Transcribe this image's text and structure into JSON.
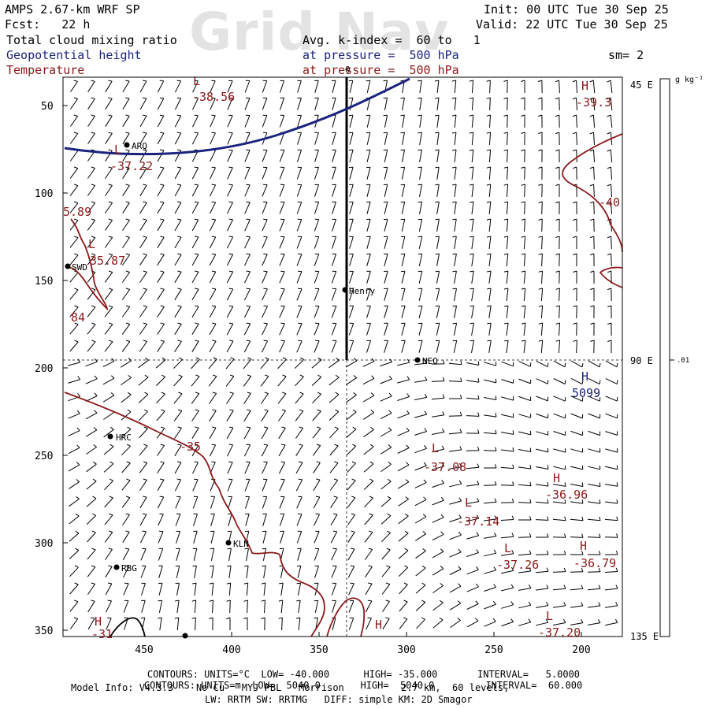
{
  "watermark": "Grid Nav",
  "header": {
    "model": "AMPS 2.67-km WRF SP",
    "fcst": "Fcst:   22 h",
    "init": "Init: 00 UTC Tue 30 Sep 25",
    "valid": "Valid: 22 UTC Tue 30 Sep 25",
    "field1": "Total cloud mixing ratio",
    "field2": "Geopotential height",
    "field3": "Temperature",
    "avg": "Avg. k-index =  60 to   1",
    "pressure1": "at pressure =  500 hPa",
    "pressure2": "at pressure =  500 hPa",
    "sm": "sm= 2"
  },
  "axes": {
    "x_ticks": [
      "450",
      "400",
      "350",
      "300",
      "250",
      "200"
    ],
    "y_ticks": [
      "50",
      "100",
      "150",
      "200",
      "250",
      "300",
      "350"
    ],
    "right_labels": [
      "45 E",
      "90 E",
      "135 E"
    ],
    "unit_label": "g kg⁻¹",
    "colorbar_value": ".01"
  },
  "stations": [
    {
      "name": "ARQ"
    },
    {
      "name": "SWD"
    },
    {
      "name": "Henry"
    },
    {
      "name": "NEO"
    },
    {
      "name": "HRC"
    },
    {
      "name": "KLN"
    },
    {
      "name": "RBG"
    }
  ],
  "contour_labels": [
    {
      "text": "L"
    },
    {
      "text": "-38.56"
    },
    {
      "text": "L"
    },
    {
      "text": "-37.22"
    },
    {
      "text": "5.89"
    },
    {
      "text": "L"
    },
    {
      "text": "35.87"
    },
    {
      "text": "84"
    },
    {
      "text": "H"
    },
    {
      "text": "-39.3"
    },
    {
      "text": "-40"
    },
    {
      "text": "H"
    },
    {
      "text": "5099"
    },
    {
      "text": "-35"
    },
    {
      "text": "L"
    },
    {
      "text": "-37.08"
    },
    {
      "text": "H"
    },
    {
      "text": "-36.96"
    },
    {
      "text": "L"
    },
    {
      "text": "-37.14"
    },
    {
      "text": "L"
    },
    {
      "text": "-37.26"
    },
    {
      "text": "H"
    },
    {
      "text": "-36.79"
    },
    {
      "text": "H"
    },
    {
      "text": "L"
    },
    {
      "text": "-37.20"
    },
    {
      "text": "H"
    },
    {
      "text": "-31"
    },
    {
      "text": "0"
    }
  ],
  "footer": {
    "c1_label": "CONTOURS:",
    "c1_units": "UNITS=°C",
    "c1_low": "LOW= -40.000",
    "c1_high": "HIGH= -35.000",
    "c1_int": "INTERVAL=   5.0000",
    "c2_label": "CONTOURS:",
    "c2_units": "UNITS=m",
    "c2_low": "LOW=  5040.0",
    "c2_high": "HIGH=  5040.0",
    "c2_int": "INTERVAL=  60.000",
    "model_info": "Model Info: V4.3.3    No Cu   MYJ PBL   Morrison          2.7 km,  60 levels,",
    "model_info2": "LW: RRTM SW: RRTMG   DIFF: simple KM: 2D Smagor"
  },
  "colors": {
    "temperature": "#8b1a1a",
    "height": "#1a237e",
    "text": "#000000"
  }
}
